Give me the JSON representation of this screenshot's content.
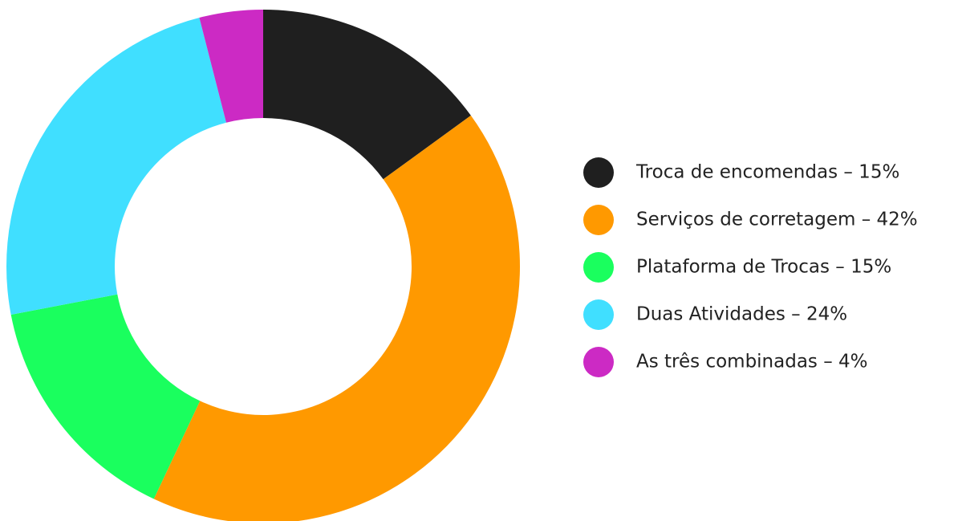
{
  "chart_data": {
    "type": "pie",
    "categories": [
      "Troca de encomendas – 15%",
      "Serviços de corretagem – 42%",
      "Plataforma de Trocas – 15%",
      "Duas Atividades – 24%",
      "As três combinadas – 4%"
    ],
    "values": [
      15,
      42,
      15,
      24,
      4
    ],
    "colors": [
      "#1f1f1f",
      "#ff9900",
      "#1aff5e",
      "#40dfff",
      "#cc2ac4"
    ],
    "donut": true,
    "legend": "right"
  }
}
